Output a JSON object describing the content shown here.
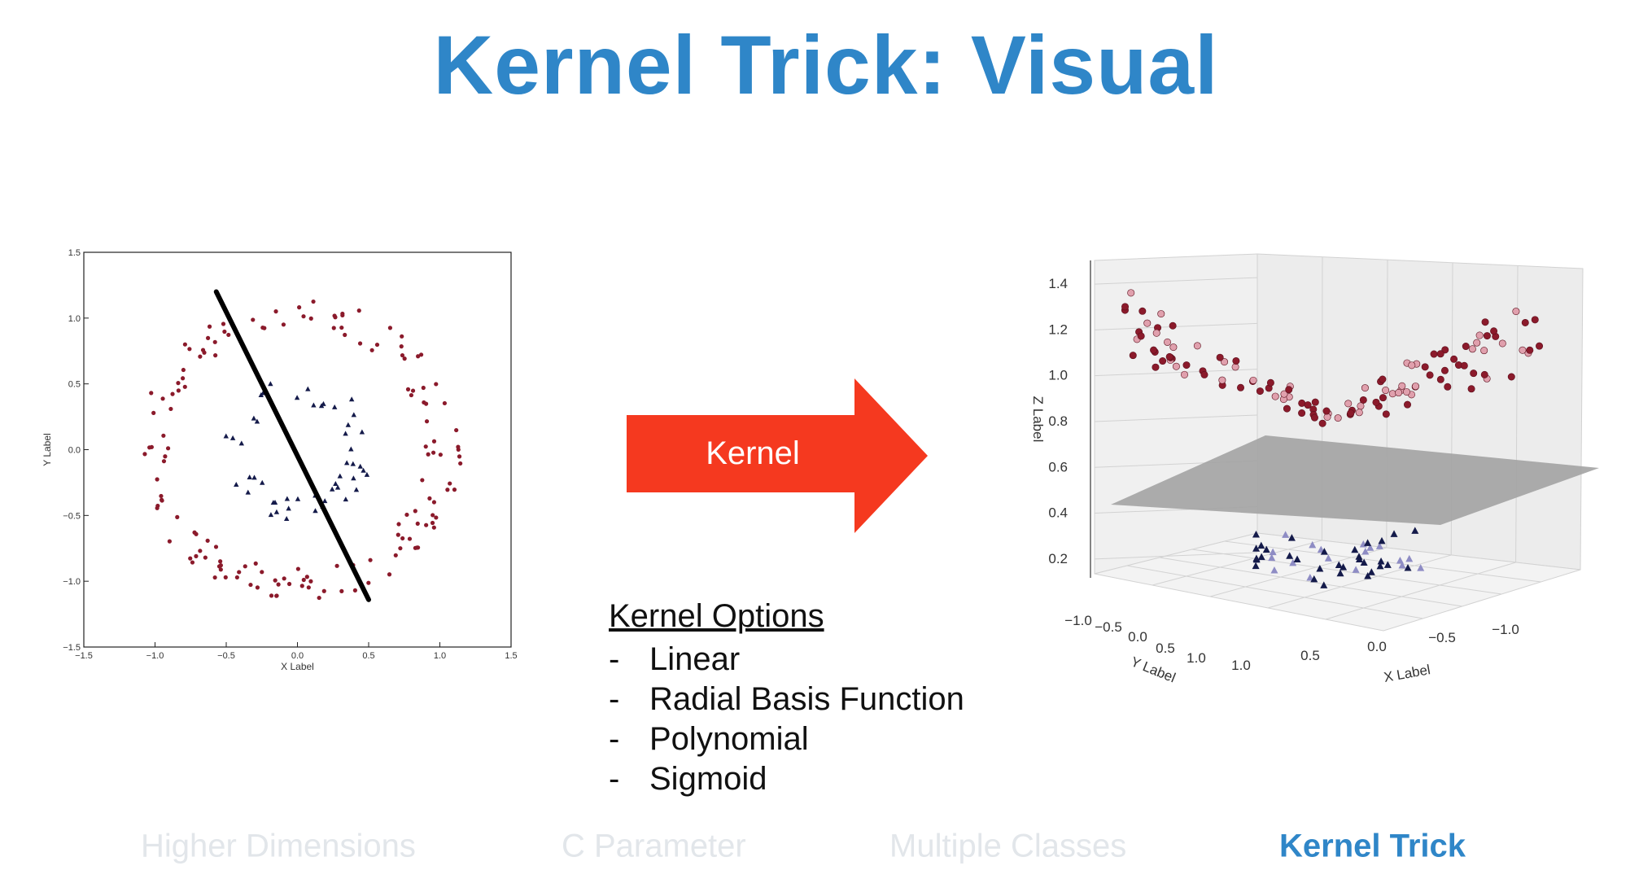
{
  "slide": {
    "title": "Kernel Trick: Visual",
    "title_color": "#2f86c8"
  },
  "arrow": {
    "label": "Kernel",
    "color": "#f5391f"
  },
  "kernel_options": {
    "title": "Kernel Options",
    "dash": "-",
    "items": [
      "Linear",
      "Radial Basis Function",
      "Polynomial",
      "Sigmoid"
    ]
  },
  "nav": {
    "items": [
      {
        "label": "Higher Dimensions",
        "active": false
      },
      {
        "label": "C Parameter",
        "active": false
      },
      {
        "label": "Multiple Classes",
        "active": false
      },
      {
        "label": "Kernel Trick",
        "active": true
      }
    ],
    "inactive_color": "#e2e6ea",
    "active_color": "#2f86c8"
  },
  "chart_data": [
    {
      "type": "scatter",
      "title": "",
      "xlabel": "X Label",
      "ylabel": "Y Label",
      "xlim": [
        -1.5,
        1.5
      ],
      "ylim": [
        -1.5,
        1.5
      ],
      "xticks": [
        "-1.5",
        "-1.0",
        "-0.5",
        "0.0",
        "0.5",
        "1.0",
        "1.5"
      ],
      "yticks": [
        "-1.5",
        "-1.0",
        "-0.5",
        "0.0",
        "0.5",
        "1.0",
        "1.5"
      ],
      "grid": false,
      "colors": {
        "outer": "#8b1a2b",
        "inner": "#141a4a",
        "line": "#000000"
      },
      "outer_ring": {
        "marker": "circle",
        "radius_range": [
          0.9,
          1.15
        ],
        "count": 150
      },
      "inner_ring": {
        "marker": "triangle",
        "radius_range": [
          0.35,
          0.55
        ],
        "count": 50
      },
      "separating_line": [
        [
          -0.57,
          1.2
        ],
        [
          0.5,
          -1.14
        ]
      ]
    },
    {
      "type": "scatter",
      "title": "",
      "xlabel": "X Label",
      "ylabel": "Y Label",
      "zlabel": "Z Label",
      "x_ticks": [
        "1.0",
        "0.5",
        "0.0",
        "-0.5",
        "-1.0"
      ],
      "y_ticks": [
        "-1.0",
        "-0.5",
        "0.0",
        "0.5",
        "1.0"
      ],
      "z_ticks": [
        "0.2",
        "0.4",
        "0.6",
        "0.8",
        "1.0",
        "1.2",
        "1.4"
      ],
      "zlim": [
        0.1,
        1.45
      ],
      "plane_z": 0.5,
      "colors": {
        "outer": "#8b1a2b",
        "inner": "#141a4a",
        "plane": "#a3a3a3"
      },
      "outer_points": {
        "marker": "circle",
        "z_range": [
          0.7,
          1.4
        ],
        "count": 120
      },
      "inner_points": {
        "marker": "triangle",
        "z_range": [
          0.12,
          0.3
        ],
        "count": 50
      }
    }
  ]
}
